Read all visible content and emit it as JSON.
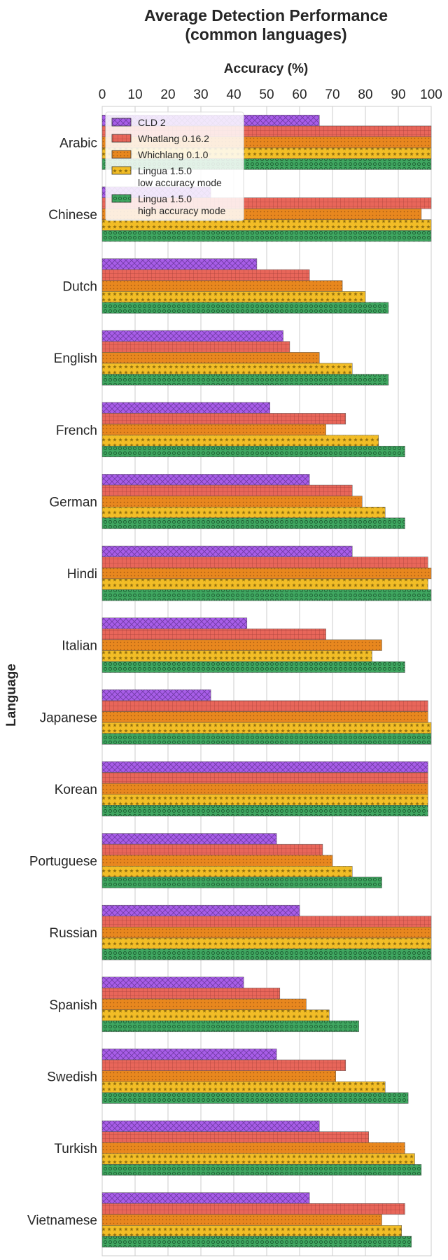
{
  "chart_data": {
    "type": "bar",
    "orientation": "horizontal",
    "title_line1": "Average Detection Performance",
    "title_line2": "(common languages)",
    "xlabel": "Accuracy (%)",
    "ylabel": "Language",
    "xlim": [
      0,
      100
    ],
    "xticks": [
      0,
      10,
      20,
      30,
      40,
      50,
      60,
      70,
      80,
      90,
      100
    ],
    "grid": "vertical",
    "legend_position": "top-left",
    "categories": [
      "Arabic",
      "Chinese",
      "Dutch",
      "English",
      "French",
      "German",
      "Hindi",
      "Italian",
      "Japanese",
      "Korean",
      "Portuguese",
      "Russian",
      "Spanish",
      "Swedish",
      "Turkish",
      "Vietnamese"
    ],
    "series": [
      {
        "name": "CLD 2",
        "color": "#a85de8",
        "pattern": "crosshatch",
        "values": [
          66,
          33,
          47,
          55,
          51,
          63,
          76,
          44,
          33,
          99,
          53,
          60,
          43,
          53,
          66,
          63
        ]
      },
      {
        "name": "Whatlang 0.16.2",
        "color": "#e8665a",
        "pattern": "grid",
        "values": [
          100,
          100,
          63,
          57,
          74,
          76,
          99,
          68,
          99,
          99,
          67,
          100,
          54,
          74,
          81,
          92
        ]
      },
      {
        "name": "Whichlang 0.1.0",
        "color": "#e8871e",
        "pattern": "dots",
        "values": [
          100,
          97,
          73,
          66,
          68,
          79,
          100,
          85,
          99,
          99,
          70,
          100,
          62,
          71,
          92,
          85
        ]
      },
      {
        "name": "Lingua 1.5.0\nlow accuracy mode",
        "color": "#f2bd26",
        "pattern": "stars",
        "values": [
          100,
          100,
          80,
          76,
          84,
          86,
          99,
          82,
          100,
          99,
          76,
          100,
          69,
          86,
          95,
          91
        ]
      },
      {
        "name": "Lingua 1.5.0\nhigh accuracy mode",
        "color": "#3fa660",
        "pattern": "circles",
        "values": [
          100,
          100,
          87,
          87,
          92,
          92,
          100,
          92,
          100,
          99,
          85,
          100,
          78,
          93,
          97,
          94
        ]
      }
    ]
  }
}
